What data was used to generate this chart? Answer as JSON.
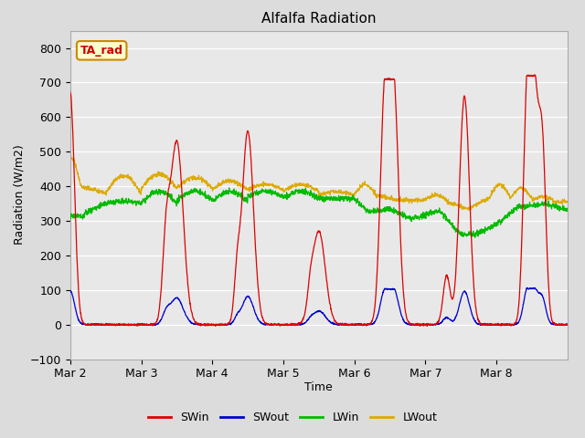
{
  "title": "Alfalfa Radiation",
  "xlabel": "Time",
  "ylabel": "Radiation (W/m2)",
  "ylim": [
    -100,
    850
  ],
  "yticks": [
    -100,
    0,
    100,
    200,
    300,
    400,
    500,
    600,
    700,
    800
  ],
  "legend_entries": [
    "SWin",
    "SWout",
    "LWin",
    "LWout"
  ],
  "legend_colors": [
    "#dd0000",
    "#0000cc",
    "#00bb00",
    "#ddaa00"
  ],
  "bg_color": "#dcdcdc",
  "axes_bg": "#e8e8e8",
  "title_fontsize": 11,
  "label_fontsize": 9,
  "tick_fontsize": 9,
  "annotation_text": "TA_rad",
  "annotation_bg": "#ffffcc",
  "annotation_border": "#cc8800",
  "annotation_text_color": "#cc0000",
  "days": [
    "Mar 2",
    "Mar 3",
    "Mar 4",
    "Mar 5",
    "Mar 6",
    "Mar 7",
    "Mar 8"
  ],
  "xlim": [
    0,
    7.0
  ],
  "xtick_pos": [
    0,
    1,
    2,
    3,
    4,
    5,
    6
  ],
  "n_points": 2016,
  "time_end": 7.0
}
